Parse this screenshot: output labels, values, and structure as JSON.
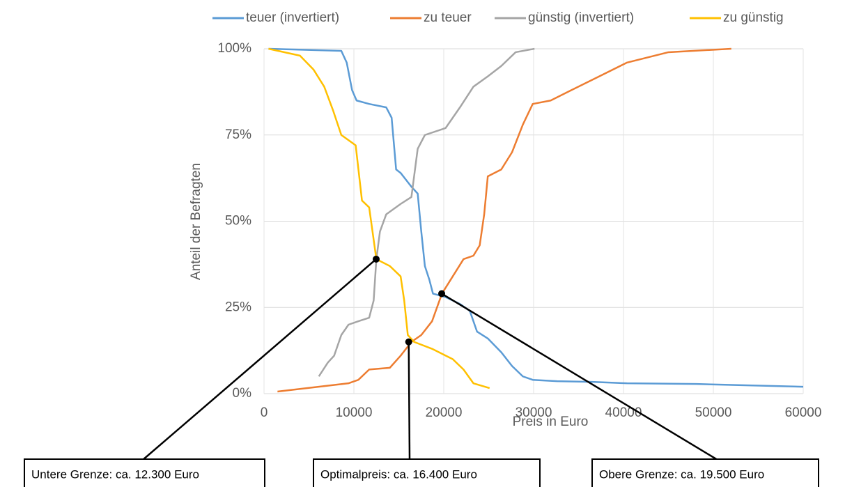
{
  "chart_data": {
    "type": "line",
    "xlabel": "Preis in Euro",
    "ylabel": "Anteil der Befragten",
    "xlim": [
      0,
      60000
    ],
    "xticks": [
      0,
      10000,
      20000,
      30000,
      40000,
      50000,
      60000
    ],
    "ylim": [
      0,
      100
    ],
    "yticks": [
      {
        "value": 0,
        "label": "0%"
      },
      {
        "value": 25,
        "label": "25%"
      },
      {
        "value": 50,
        "label": "50%"
      },
      {
        "value": 75,
        "label": "75%"
      },
      {
        "value": 100,
        "label": "100%"
      }
    ],
    "grid": true,
    "legend": "top",
    "series": [
      {
        "name": "teuer (invertiert)",
        "color": "#5b9bd5",
        "x": [
          500,
          8600,
          9200,
          9800,
          10300,
          11700,
          13600,
          14200,
          14700,
          15200,
          16400,
          17100,
          17500,
          17900,
          18400,
          18800,
          20200,
          21800,
          22900,
          23700,
          24900,
          26400,
          27600,
          28800,
          29900,
          32600,
          36500,
          40400,
          48100,
          60000
        ],
        "values": [
          100,
          99.4,
          96,
          88,
          85,
          84,
          83,
          80,
          65,
          64,
          60,
          58,
          47,
          37,
          33,
          29,
          28,
          26,
          24,
          18,
          16,
          12,
          8,
          5,
          4,
          3.6,
          3.4,
          3,
          2.8,
          2
        ]
      },
      {
        "name": "zu teuer",
        "color": "#ed7d31",
        "x": [
          1500,
          9400,
          10500,
          11700,
          14000,
          15200,
          16400,
          17500,
          18700,
          19800,
          21000,
          22200,
          23300,
          24000,
          24500,
          24900,
          26400,
          27600,
          28800,
          29900,
          31900,
          34200,
          37300,
          40400,
          45000,
          52000
        ],
        "values": [
          0.6,
          3,
          4,
          7,
          7.5,
          11,
          15,
          17,
          21,
          29,
          34,
          39,
          40,
          43,
          52,
          63,
          65,
          70,
          78,
          84,
          85,
          88,
          92,
          96,
          99,
          100
        ]
      },
      {
        "name": "günstig (invertiert)",
        "color": "#a5a5a5",
        "x": [
          6100,
          7100,
          7800,
          8600,
          9400,
          10500,
          11700,
          12200,
          12500,
          12900,
          13600,
          15200,
          16400,
          17100,
          17900,
          20200,
          21800,
          23300,
          24900,
          26400,
          28000,
          30100
        ],
        "values": [
          5,
          9,
          11,
          17,
          20,
          21,
          22,
          27,
          39,
          47,
          52,
          55,
          57,
          71,
          75,
          77,
          83,
          89,
          92,
          95,
          99,
          100
        ]
      },
      {
        "name": "zu günstig",
        "color": "#ffc000",
        "x": [
          500,
          4000,
          5500,
          6700,
          7700,
          8600,
          10200,
          10900,
          11700,
          12500,
          14000,
          15200,
          15600,
          16000,
          16700,
          18700,
          21000,
          22200,
          23300,
          25100
        ],
        "values": [
          100,
          98,
          94,
          89,
          82,
          75,
          72,
          56,
          54,
          39,
          37,
          34,
          27,
          17,
          15,
          13,
          10,
          7,
          3,
          1.6
        ]
      }
    ],
    "annotations": [
      {
        "text": "Untere Grenze: ca. 12.300 Euro",
        "x": 12480,
        "y": 39
      },
      {
        "text": "Optimalpreis: ca. 16.400 Euro",
        "x": 16100,
        "y": 15
      },
      {
        "text": "Obere Grenze: ca. 19.500 Euro",
        "x": 19770,
        "y": 29
      }
    ]
  }
}
